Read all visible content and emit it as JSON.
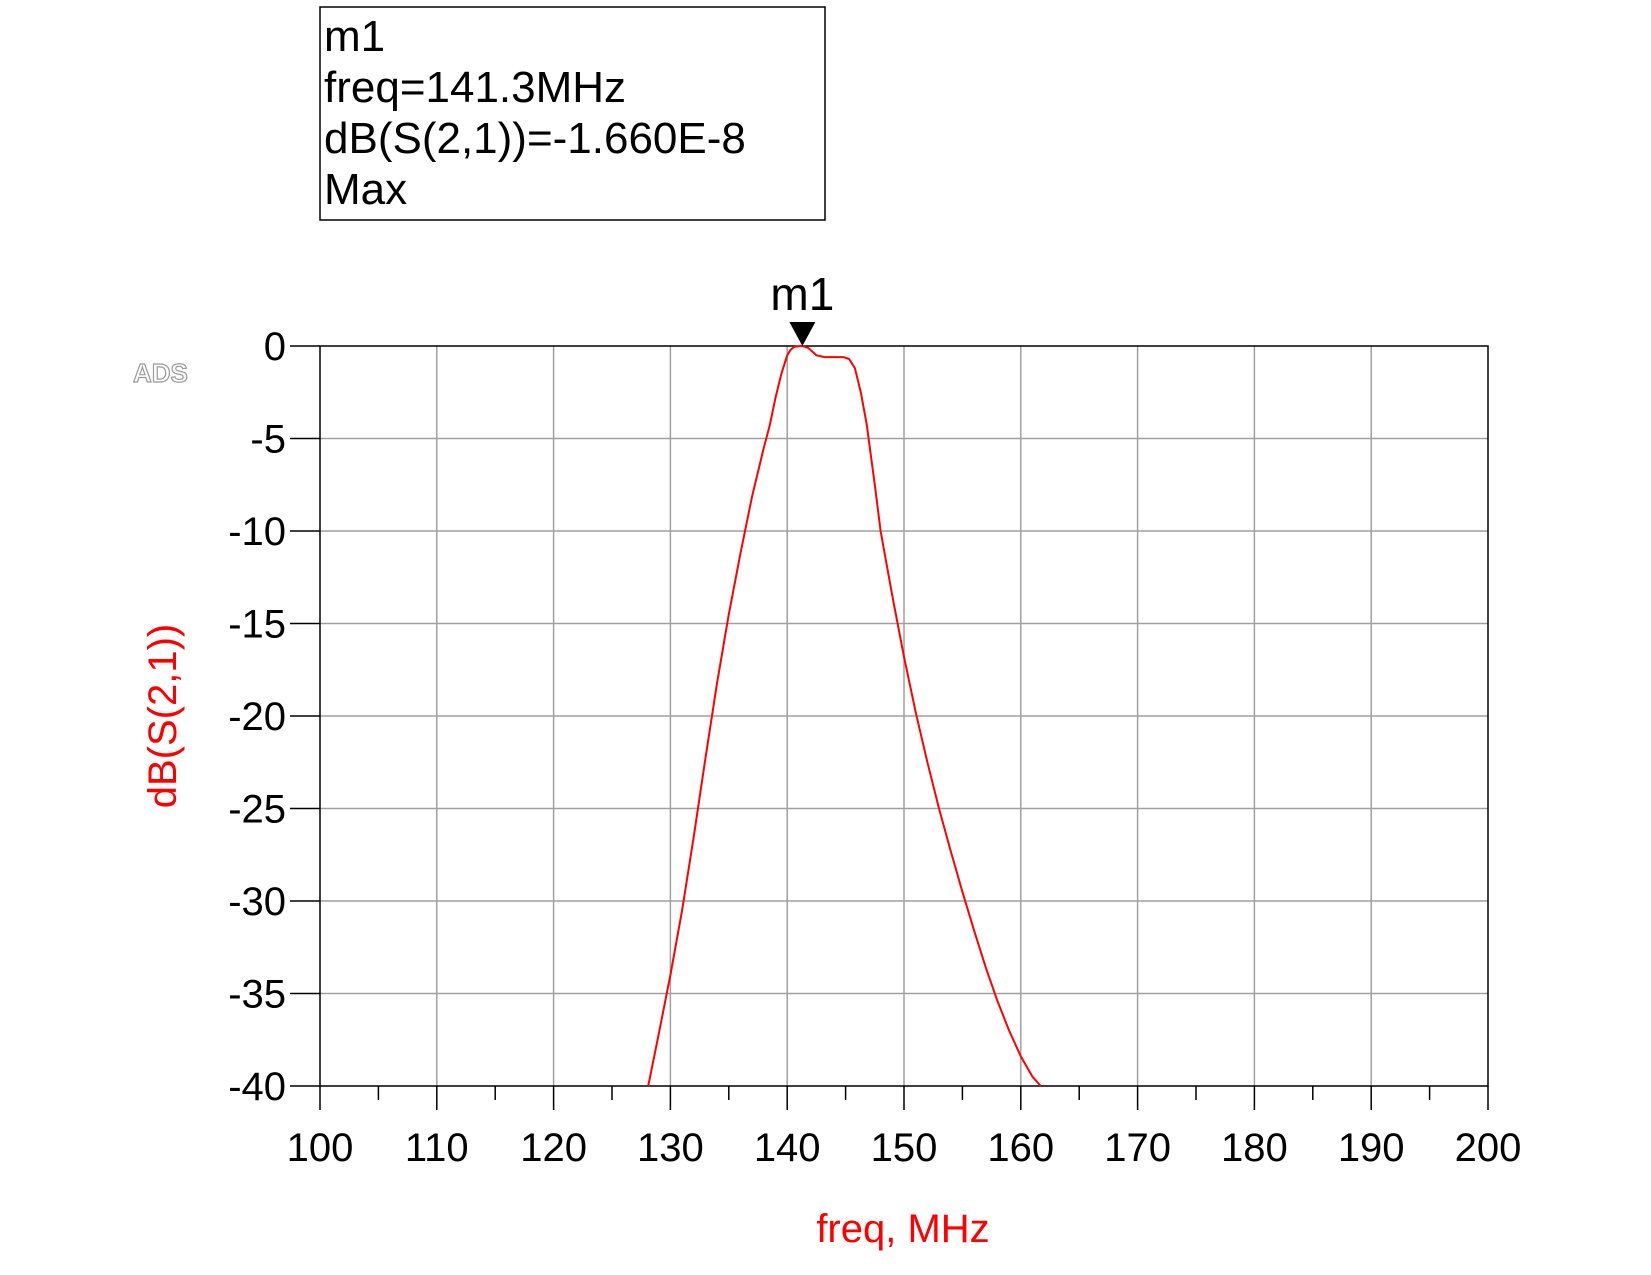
{
  "watermark": "ADS",
  "marker_readout": {
    "lines": [
      "m1",
      "freq=141.3MHz",
      "dB(S(2,1))=-1.660E-8",
      "Max"
    ]
  },
  "chart_data": {
    "type": "line",
    "title": "",
    "xlabel": "freq, MHz",
    "ylabel": "dB(S(2,1))",
    "xlim": [
      100,
      200
    ],
    "ylim": [
      -40,
      0
    ],
    "x_ticks": [
      100,
      110,
      120,
      130,
      140,
      150,
      160,
      170,
      180,
      190,
      200
    ],
    "x_tick_labels": [
      "100",
      "110",
      "120",
      "130",
      "140",
      "150",
      "160",
      "170",
      "180",
      "190",
      "200"
    ],
    "y_ticks": [
      0,
      -5,
      -10,
      -15,
      -20,
      -25,
      -30,
      -35,
      -40
    ],
    "y_tick_labels": [
      "0",
      "-5",
      "-10",
      "-15",
      "-20",
      "-25",
      "-30",
      "-35",
      "-40"
    ],
    "grid": true,
    "series_color": "#ff0000",
    "grid_color": "#a0a0a0",
    "series": [
      {
        "x": [
          128.1,
          129.0,
          130.0,
          131.0,
          132.0,
          133.0,
          134.0,
          135.0,
          136.0,
          137.0,
          138.0,
          138.5,
          139.0,
          139.5,
          140.0,
          140.3,
          140.6,
          141.0,
          141.3,
          141.8,
          142.5,
          143.2,
          144.0,
          144.8,
          145.3,
          145.8,
          146.3,
          146.8,
          147.5,
          148.0,
          149.0,
          150.0,
          151.0,
          152.0,
          153.0,
          154.0,
          155.0,
          156.0,
          157.0,
          158.0,
          159.0,
          160.0,
          161.0,
          161.7
        ],
        "y": [
          -40,
          -37.2,
          -34,
          -30.5,
          -26.5,
          -22.3,
          -18.2,
          -14.5,
          -11.2,
          -8.1,
          -5.5,
          -4.3,
          -2.8,
          -1.5,
          -0.5,
          -0.2,
          -0.05,
          -0.01,
          0,
          -0.1,
          -0.5,
          -0.6,
          -0.6,
          -0.6,
          -0.7,
          -1.2,
          -2.5,
          -4.2,
          -7.5,
          -10.0,
          -13.5,
          -16.8,
          -19.8,
          -22.5,
          -25.0,
          -27.3,
          -29.5,
          -31.6,
          -33.6,
          -35.4,
          -37.0,
          -38.4,
          -39.5,
          -40
        ]
      }
    ],
    "markers": [
      {
        "name": "m1",
        "x": 141.3,
        "y": 0
      }
    ]
  }
}
